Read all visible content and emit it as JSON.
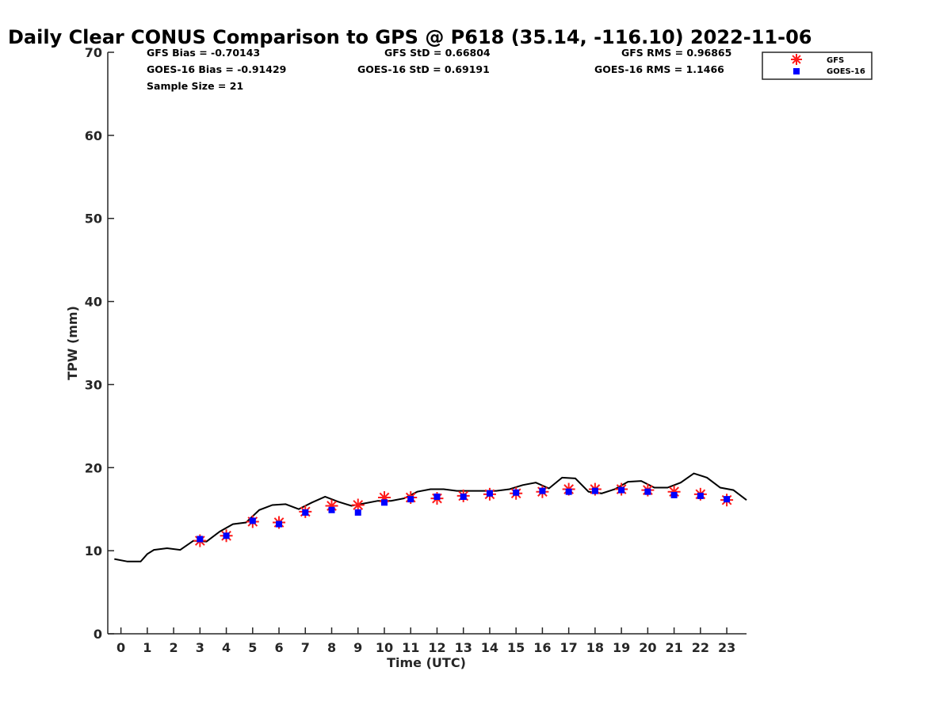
{
  "chart_data": {
    "type": "scatter",
    "title": "Daily Clear CONUS Comparison to GPS @ P618 (35.14, -116.10) 2022-11-06",
    "xlabel": "Time (UTC)",
    "ylabel": "TPW (mm)",
    "xlim": [
      -0.5,
      23.75
    ],
    "ylim": [
      0,
      70
    ],
    "x_ticks": [
      "0",
      "1",
      "2",
      "3",
      "4",
      "5",
      "6",
      "7",
      "8",
      "9",
      "10",
      "11",
      "12",
      "13",
      "14",
      "15",
      "16",
      "17",
      "18",
      "19",
      "20",
      "21",
      "22",
      "23"
    ],
    "y_ticks": [
      "0",
      "10",
      "20",
      "30",
      "40",
      "50",
      "60",
      "70"
    ],
    "grid": false,
    "legend_position": "top-right",
    "stats": {
      "gfs_bias": "GFS Bias = -0.70143",
      "gfs_std": "GFS StD = 0.66804",
      "gfs_rms": "GFS RMS = 0.96865",
      "goes_bias": "GOES-16 Bias = -0.91429",
      "goes_std": "GOES-16 StD = 0.69191",
      "goes_rms": "GOES-16 RMS = 1.1466",
      "sample_size": "Sample Size = 21"
    },
    "series": [
      {
        "name": "",
        "kind": "line",
        "color": "#000000",
        "x": [
          -0.25,
          0.25,
          0.75,
          1.0,
          1.25,
          1.75,
          2.25,
          2.75,
          3.25,
          3.75,
          4.25,
          4.75,
          5.25,
          5.75,
          6.25,
          6.75,
          7.25,
          7.75,
          8.25,
          8.75,
          9.25,
          9.75,
          10.25,
          10.75,
          11.25,
          11.75,
          12.25,
          12.75,
          13.25,
          13.75,
          14.25,
          14.75,
          15.25,
          15.75,
          16.25,
          16.75,
          17.25,
          17.75,
          18.25,
          18.75,
          19.25,
          19.75,
          20.25,
          20.75,
          21.25,
          21.75,
          22.25,
          22.75,
          23.25,
          23.75
        ],
        "y": [
          9.0,
          8.7,
          8.7,
          9.6,
          10.1,
          10.3,
          10.1,
          11.2,
          11.1,
          12.3,
          13.2,
          13.4,
          14.9,
          15.5,
          15.6,
          15.0,
          15.8,
          16.5,
          15.9,
          15.4,
          15.7,
          16.0,
          16.0,
          16.3,
          17.1,
          17.4,
          17.4,
          17.2,
          17.2,
          17.2,
          17.2,
          17.4,
          17.9,
          18.2,
          17.5,
          18.8,
          18.7,
          17.1,
          16.9,
          17.4,
          18.3,
          18.4,
          17.6,
          17.6,
          18.2,
          19.3,
          18.8,
          17.6,
          17.3,
          16.1
        ]
      },
      {
        "name": "GFS",
        "kind": "marker",
        "marker": "asterisk",
        "color": "#ff1a1a",
        "x": [
          3,
          4,
          5,
          6,
          7,
          8,
          9,
          10,
          11,
          12,
          13,
          14,
          15,
          16,
          17,
          18,
          19,
          20,
          21,
          22,
          23
        ],
        "y": [
          11.2,
          11.8,
          13.5,
          13.4,
          14.7,
          15.4,
          15.5,
          16.4,
          16.4,
          16.3,
          16.6,
          16.8,
          16.9,
          17.1,
          17.4,
          17.4,
          17.4,
          17.3,
          17.1,
          16.8,
          16.1
        ]
      },
      {
        "name": "GOES-16",
        "kind": "marker",
        "marker": "square",
        "color": "#0000ff",
        "x": [
          3,
          4,
          5,
          6,
          7,
          8,
          9,
          10,
          11,
          12,
          13,
          14,
          15,
          16,
          17,
          18,
          19,
          20,
          21,
          22,
          23
        ],
        "y": [
          11.4,
          11.8,
          13.6,
          13.2,
          14.6,
          14.9,
          14.6,
          15.8,
          16.2,
          16.5,
          16.5,
          16.9,
          17.0,
          17.2,
          17.1,
          17.2,
          17.3,
          17.1,
          16.7,
          16.6,
          16.2
        ]
      }
    ]
  }
}
